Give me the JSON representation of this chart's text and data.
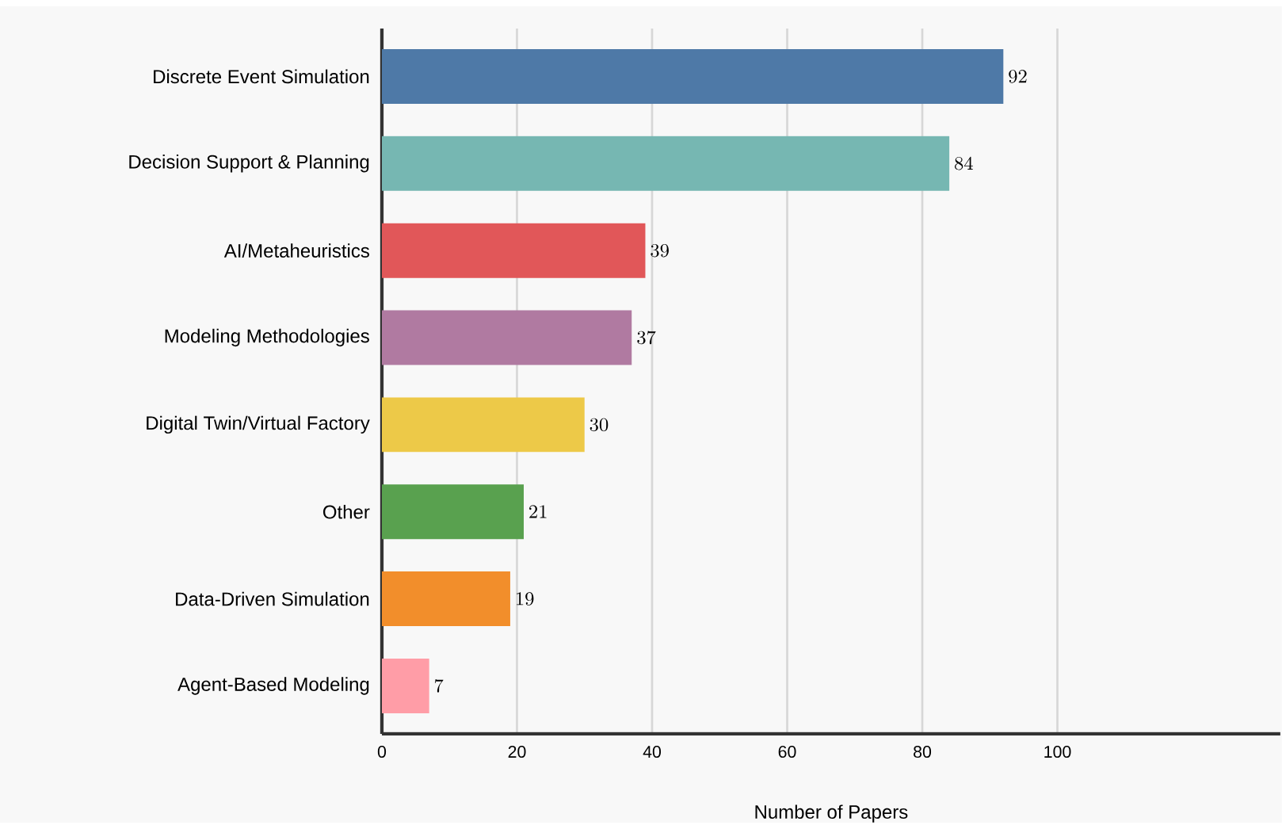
{
  "chart_data": {
    "type": "bar",
    "orientation": "horizontal",
    "xlabel": "Number of Papers",
    "categories": [
      "Discrete Event Simulation",
      "Decision Support & Planning",
      "AI/Metaheuristics",
      "Modeling Methodologies",
      "Digital Twin/Virtual Factory",
      "Other",
      "Data-Driven Simulation",
      "Agent-Based Modeling"
    ],
    "values": [
      92,
      84,
      39,
      37,
      30,
      21,
      19,
      7
    ],
    "colors": [
      "#4e79a7",
      "#76b7b2",
      "#e15759",
      "#b07aa1",
      "#edc948",
      "#59a14f",
      "#f28e2b",
      "#ff9da7"
    ],
    "xlim": [
      0,
      133
    ],
    "xticks": [
      0,
      20,
      40,
      60,
      80,
      100
    ],
    "grid": "x",
    "data_labels": true
  }
}
